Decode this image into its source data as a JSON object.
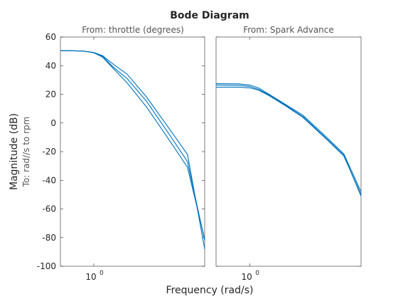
{
  "chart_data": {
    "type": "line",
    "title": "Bode Diagram",
    "xlabel": "Frequency  (rad/s)",
    "ylabel": "Magnitude (dB)",
    "row_label": "To: rad//s to rpm",
    "x_scale": "log",
    "grid": false,
    "ylim": [
      -100,
      60
    ],
    "y_ticks": [
      {
        "value": 60,
        "label": "60"
      },
      {
        "value": 40,
        "label": "40"
      },
      {
        "value": 20,
        "label": "20"
      },
      {
        "value": 0,
        "label": "0"
      },
      {
        "value": -20,
        "label": "-20"
      },
      {
        "value": -40,
        "label": "-40"
      },
      {
        "value": -60,
        "label": "-60"
      },
      {
        "value": -80,
        "label": "-80"
      },
      {
        "value": -100,
        "label": "-100"
      }
    ],
    "panels": [
      {
        "column_label": "From: throttle (degrees)",
        "xlim": [
          0.5,
          10
        ],
        "x_ticks": [
          {
            "value": 1,
            "base": "10",
            "exp": "0"
          }
        ],
        "series": [
          {
            "color": "#0072BD",
            "x": [
              0.5,
              0.8,
              1,
              1.2,
              1.5,
              2,
              3,
              5,
              7,
              10
            ],
            "y": [
              50.5,
              50.2,
              49,
              46,
              38,
              28,
              11,
              -14,
              -31,
              -81
            ]
          },
          {
            "color": "#0072BD",
            "x": [
              0.5,
              0.8,
              1,
              1.2,
              1.5,
              2,
              3,
              5,
              7,
              10
            ],
            "y": [
              50.5,
              50.2,
              49,
              46.5,
              39,
              31,
              15,
              -10,
              -27,
              -82
            ]
          },
          {
            "color": "#0072BD",
            "x": [
              0.5,
              0.8,
              1,
              1.2,
              1.5,
              2,
              3,
              5,
              7,
              10
            ],
            "y": [
              50.5,
              50.2,
              49.2,
              47,
              41,
              34,
              18,
              -6,
              -22,
              -88
            ]
          }
        ]
      },
      {
        "column_label": "From: Spark Advance",
        "xlim": [
          0.5,
          10
        ],
        "x_ticks": [
          {
            "value": 1,
            "base": "10",
            "exp": "0"
          }
        ],
        "series": [
          {
            "color": "#0072BD",
            "x": [
              0.5,
              0.8,
              1,
              1.2,
              1.5,
              2,
              3,
              5,
              7,
              10
            ],
            "y": [
              25,
              25,
              24.5,
              23,
              19,
              13,
              4,
              -12,
              -23,
              -50
            ]
          },
          {
            "color": "#0072BD",
            "x": [
              0.5,
              0.8,
              1,
              1.2,
              1.5,
              2,
              3,
              5,
              7,
              10
            ],
            "y": [
              26.5,
              26.3,
              25.5,
              23.5,
              19.5,
              13.5,
              4.5,
              -11.5,
              -22.5,
              -51
            ]
          },
          {
            "color": "#0072BD",
            "x": [
              0.5,
              0.8,
              1,
              1.2,
              1.5,
              2,
              3,
              5,
              7,
              10
            ],
            "y": [
              27.5,
              27.3,
              26.5,
              24.5,
              20,
              14,
              5.5,
              -10.5,
              -21.5,
              -48
            ]
          }
        ]
      }
    ]
  }
}
